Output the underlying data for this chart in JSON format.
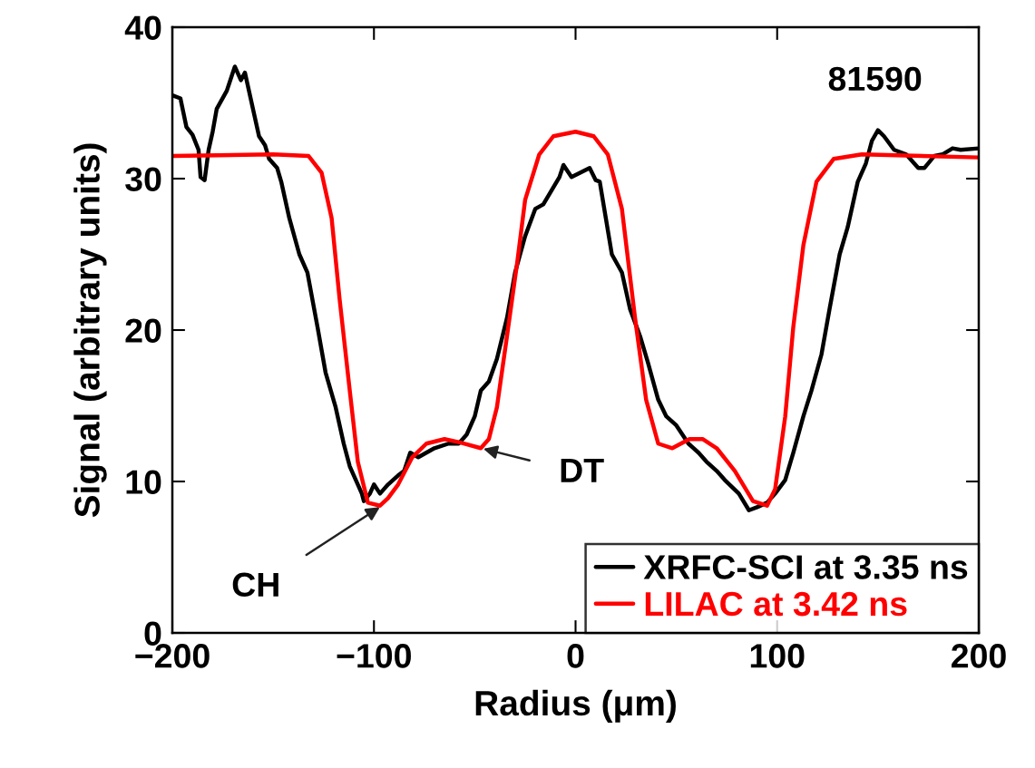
{
  "chart_data": {
    "type": "line",
    "xlabel": "Radius (μm)",
    "ylabel": "Signal (arbitrary units)",
    "xlim": [
      -200,
      200
    ],
    "ylim": [
      0,
      40
    ],
    "xticks": [
      {
        "value": -200,
        "label": "−200"
      },
      {
        "value": -100,
        "label": "−100"
      },
      0,
      100,
      200
    ],
    "yticks": [
      0,
      10,
      20,
      30,
      40
    ],
    "grid": false,
    "legend": "bottom right",
    "line_style": "solid",
    "marker": "none",
    "annotations": [
      "81590",
      {
        "text": "CH",
        "x": -96,
        "y": 8.4
      },
      {
        "text": "DT",
        "x": -47,
        "y": 12.2
      }
    ],
    "series": [
      {
        "name": "XRFC-SCI at 3.35 ns",
        "color": "#000000",
        "x": [
          -200,
          -196,
          -193,
          -190,
          -187,
          -186,
          -184,
          -182,
          -180,
          -178,
          -173,
          -169,
          -166,
          -164,
          -160,
          -157,
          -154,
          -152,
          -148,
          -146,
          -142,
          -137,
          -133,
          -128,
          -124,
          -119,
          -115,
          -112,
          -109,
          -106,
          -105,
          -102,
          -100,
          -97,
          -93,
          -88,
          -85,
          -82,
          -78,
          -74,
          -70,
          -63,
          -58,
          -54,
          -50,
          -47,
          -43,
          -39,
          -34,
          -30,
          -25,
          -20,
          -16,
          -12,
          -8,
          -6,
          -2,
          2.5,
          7,
          10,
          12,
          15,
          18,
          23,
          27,
          32,
          36,
          41,
          45,
          50,
          56,
          61,
          65,
          70,
          74,
          81,
          86,
          90,
          95,
          99,
          104,
          108,
          113,
          117,
          122,
          126,
          131,
          135,
          140,
          144,
          147,
          150,
          153,
          158,
          164,
          170,
          173,
          178,
          182,
          187,
          191,
          200
        ],
        "values": [
          35.5,
          35.3,
          33.4,
          32.9,
          31.9,
          30.1,
          29.9,
          31.9,
          33.1,
          34.6,
          35.8,
          37.4,
          36.5,
          37.0,
          34.6,
          32.8,
          32.2,
          31.3,
          30.7,
          29.8,
          27.4,
          25.0,
          23.8,
          20.2,
          17.2,
          14.9,
          12.5,
          11.0,
          10.1,
          9.2,
          8.7,
          9.2,
          9.8,
          9.2,
          9.8,
          10.4,
          10.7,
          11.9,
          11.6,
          11.9,
          12.2,
          12.5,
          12.5,
          13.1,
          14.3,
          16.0,
          16.6,
          18.1,
          20.8,
          23.8,
          26.2,
          28.0,
          28.3,
          29.2,
          30.1,
          30.9,
          30.1,
          30.4,
          30.7,
          29.9,
          29.8,
          27.4,
          25.0,
          23.8,
          21.4,
          19.6,
          17.8,
          15.4,
          14.3,
          13.7,
          12.5,
          11.9,
          11.3,
          10.7,
          10.1,
          9.2,
          8.1,
          8.3,
          8.6,
          9.2,
          10.1,
          11.9,
          14.3,
          16.0,
          18.4,
          21.4,
          25.0,
          26.8,
          29.8,
          31.0,
          32.5,
          33.2,
          32.8,
          31.9,
          31.6,
          30.7,
          30.7,
          31.5,
          31.6,
          32.0,
          31.9,
          32.0
        ]
      },
      {
        "name": "LILAC at 3.42 ns",
        "color": "#ff0000",
        "x": [
          -200,
          -150,
          -132.5,
          -126,
          -121,
          -117,
          -112,
          -108,
          -103,
          -97,
          -93,
          -88,
          -81,
          -74,
          -65,
          -58,
          -47,
          -43,
          -39,
          -34,
          -29,
          -25,
          -18,
          -11,
          0,
          9,
          16,
          23,
          29.5,
          35,
          41,
          48,
          56.5,
          63,
          70,
          79,
          88,
          95,
          99,
          104,
          108,
          113,
          119.5,
          128,
          142,
          200
        ],
        "values": [
          31.5,
          31.6,
          31.5,
          30.4,
          27.4,
          22.0,
          16.0,
          11.3,
          8.6,
          8.4,
          8.9,
          9.8,
          11.6,
          12.5,
          12.8,
          12.6,
          12.2,
          12.8,
          14.9,
          19.6,
          24.4,
          28.6,
          31.6,
          32.8,
          33.1,
          32.8,
          31.6,
          28.0,
          20.8,
          15.4,
          12.5,
          12.2,
          12.8,
          12.8,
          12.2,
          10.7,
          8.7,
          8.4,
          9.5,
          14.3,
          20.2,
          25.6,
          29.8,
          31.3,
          31.6,
          31.4
        ]
      }
    ]
  }
}
